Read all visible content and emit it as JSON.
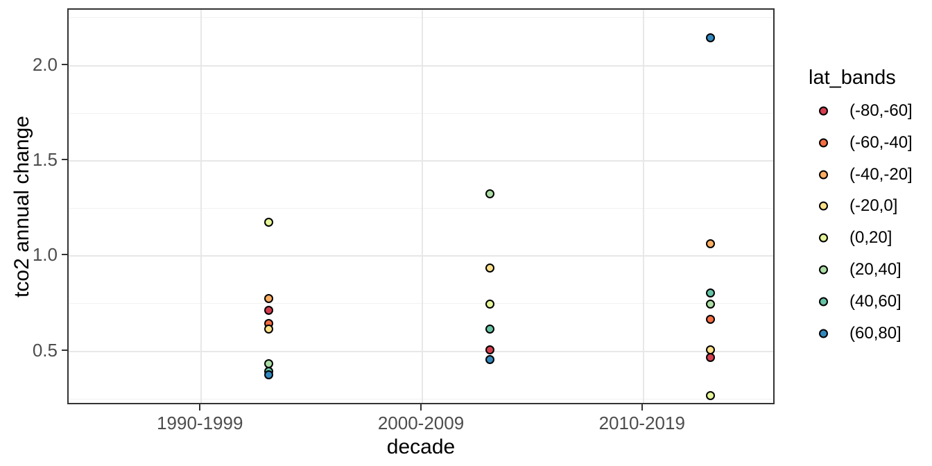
{
  "chart_data": {
    "type": "scatter",
    "title": "",
    "xlabel": "decade",
    "ylabel": "tco2 annual change",
    "categories": [
      "1990-1999",
      "2000-2009",
      "2010-2019"
    ],
    "ylim": [
      0.215,
      2.293
    ],
    "y_major_ticks": [
      0.5,
      1.0,
      1.5,
      2.0
    ],
    "y_minor_ticks": [
      0.25,
      0.75,
      1.25,
      1.75,
      2.25
    ],
    "grid": true,
    "legend": {
      "title": "lat_bands",
      "position": "right"
    },
    "series": [
      {
        "name": "(-80,-60]",
        "color": "#d53e4f",
        "values": [
          0.76,
          0.55,
          0.51
        ]
      },
      {
        "name": "(-60,-40]",
        "color": "#f46d43",
        "values": [
          0.69,
          null,
          0.71
        ]
      },
      {
        "name": "(-40,-20]",
        "color": "#fdae61",
        "values": [
          0.82,
          null,
          1.11
        ]
      },
      {
        "name": "(-20,0]",
        "color": "#fee08b",
        "values": [
          0.66,
          0.98,
          0.55
        ]
      },
      {
        "name": "(0,20]",
        "color": "#e6f598",
        "values": [
          1.22,
          0.79,
          0.31
        ]
      },
      {
        "name": "(20,40]",
        "color": "#abdda4",
        "values": [
          0.48,
          1.37,
          0.79
        ]
      },
      {
        "name": "(40,60]",
        "color": "#66c2a5",
        "values": [
          0.44,
          0.66,
          0.85
        ]
      },
      {
        "name": "(60,80]",
        "color": "#3288bd",
        "values": [
          0.42,
          0.5,
          2.19
        ]
      }
    ]
  },
  "colors": {
    "background": "#ffffff",
    "panel_border": "#333333",
    "grid_major": "#e7e7e7",
    "grid_minor": "#f1f1f1",
    "tick_mark": "#333333",
    "axis_text": "#4d4d4d",
    "title_text": "#000000",
    "point_stroke": "#000000"
  }
}
